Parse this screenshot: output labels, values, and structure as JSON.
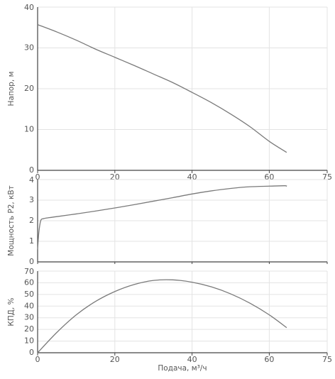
{
  "chart_data": [
    {
      "type": "line",
      "ylabel": "Напор, м",
      "xlabel": "",
      "xlim": [
        0,
        75
      ],
      "ylim": [
        0,
        40
      ],
      "x_ticks": [
        "0",
        "20",
        "40",
        "60",
        "75"
      ],
      "y_ticks": [
        "0",
        "10",
        "20",
        "30",
        "40"
      ],
      "grid": true,
      "series": [
        {
          "x": [
            0,
            5,
            10,
            15,
            20,
            25,
            30,
            35,
            40,
            45,
            50,
            55,
            60,
            64.5
          ],
          "y": [
            35.7,
            33.9,
            31.9,
            29.7,
            27.7,
            25.7,
            23.6,
            21.5,
            19.1,
            16.6,
            13.8,
            10.7,
            7.1,
            4.4
          ]
        }
      ]
    },
    {
      "type": "line",
      "ylabel": "Мощность Р2, кВт",
      "xlabel": "",
      "xlim": [
        0,
        75
      ],
      "ylim": [
        0,
        4
      ],
      "x_ticks": [],
      "y_ticks": [
        "0",
        "1",
        "2",
        "3",
        "4"
      ],
      "grid": true,
      "series": [
        {
          "x": [
            0,
            0.3,
            0.8,
            1.5,
            3,
            5,
            10,
            15,
            20,
            25,
            30,
            35,
            40,
            45,
            50,
            55,
            60,
            64,
            64.5
          ],
          "y": [
            0.6,
            1.4,
            2.0,
            2.1,
            2.15,
            2.2,
            2.33,
            2.47,
            2.62,
            2.78,
            2.95,
            3.12,
            3.3,
            3.45,
            3.57,
            3.65,
            3.68,
            3.7,
            3.67
          ]
        }
      ]
    },
    {
      "type": "line",
      "ylabel": "КПД, %",
      "xlabel": "Подача, м³/ч",
      "xlim": [
        0,
        75
      ],
      "ylim": [
        0,
        70
      ],
      "x_ticks": [
        "0",
        "20",
        "40",
        "60",
        "75"
      ],
      "y_ticks": [
        "0",
        "10",
        "20",
        "30",
        "40",
        "50",
        "60",
        "70"
      ],
      "grid": true,
      "series": [
        {
          "x": [
            0,
            5,
            10,
            15,
            20,
            25,
            30,
            35,
            40,
            45,
            50,
            55,
            60,
            64.5
          ],
          "y": [
            0,
            17.5,
            32.5,
            44,
            52.5,
            58.5,
            62,
            62.5,
            60.5,
            56.5,
            50.5,
            42.5,
            32.5,
            21.5
          ]
        }
      ]
    }
  ]
}
